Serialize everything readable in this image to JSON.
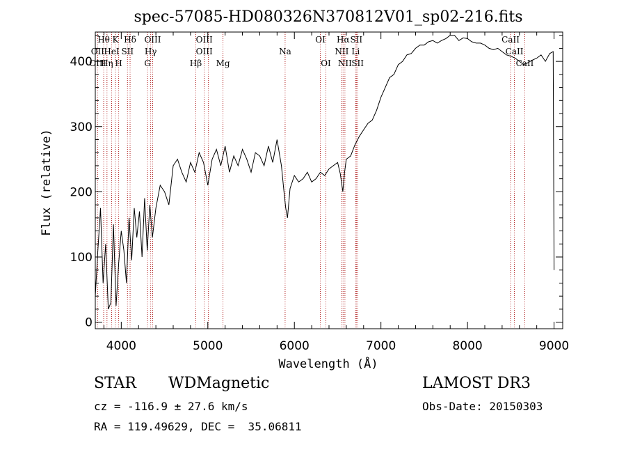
{
  "chart_data": {
    "type": "line",
    "title": "spec-57085-HD080326N370812V01_sp02-216.fits",
    "xlabel": "Wavelength (Å)",
    "ylabel": "Flux (relative)",
    "xlim": [
      3700,
      9100
    ],
    "ylim": [
      -10,
      445
    ],
    "xticks": [
      4000,
      5000,
      6000,
      7000,
      8000,
      9000
    ],
    "yticks": [
      0,
      100,
      200,
      300,
      400
    ],
    "grid": false,
    "series": [
      {
        "x": [
          3700,
          3730,
          3760,
          3790,
          3820,
          3850,
          3880,
          3910,
          3940,
          3970,
          4000,
          4030,
          4060,
          4090,
          4120,
          4150,
          4180,
          4210,
          4240,
          4270,
          4300,
          4330,
          4360,
          4400,
          4450,
          4500,
          4550,
          4600,
          4650,
          4700,
          4750,
          4800,
          4850,
          4900,
          4950,
          5000,
          5050,
          5100,
          5150,
          5200,
          5250,
          5300,
          5350,
          5400,
          5450,
          5500,
          5550,
          5600,
          5650,
          5700,
          5750,
          5800,
          5850,
          5880,
          5900,
          5920,
          5950,
          6000,
          6050,
          6100,
          6150,
          6200,
          6250,
          6300,
          6350,
          6400,
          6450,
          6500,
          6530,
          6560,
          6580,
          6600,
          6650,
          6700,
          6750,
          6800,
          6850,
          6900,
          6950,
          7000,
          7050,
          7100,
          7150,
          7200,
          7250,
          7300,
          7350,
          7400,
          7450,
          7500,
          7550,
          7600,
          7650,
          7700,
          7750,
          7800,
          7850,
          7900,
          7950,
          8000,
          8050,
          8100,
          8150,
          8200,
          8250,
          8300,
          8350,
          8400,
          8450,
          8500,
          8550,
          8600,
          8650,
          8700,
          8750,
          8800,
          8850,
          8900,
          8950,
          8990,
          9000
        ],
        "y": [
          40,
          110,
          175,
          60,
          120,
          20,
          30,
          150,
          25,
          90,
          140,
          110,
          60,
          160,
          95,
          175,
          130,
          170,
          100,
          190,
          110,
          180,
          130,
          175,
          210,
          200,
          180,
          240,
          250,
          230,
          215,
          245,
          230,
          260,
          245,
          210,
          250,
          265,
          240,
          270,
          230,
          255,
          240,
          265,
          250,
          230,
          260,
          255,
          240,
          270,
          245,
          280,
          240,
          200,
          175,
          160,
          205,
          225,
          215,
          220,
          230,
          215,
          220,
          230,
          225,
          235,
          240,
          245,
          228,
          200,
          230,
          250,
          255,
          272,
          285,
          295,
          305,
          310,
          325,
          345,
          360,
          375,
          380,
          395,
          400,
          410,
          412,
          420,
          425,
          425,
          430,
          432,
          428,
          432,
          435,
          440,
          440,
          432,
          436,
          435,
          430,
          428,
          428,
          425,
          420,
          418,
          420,
          415,
          410,
          408,
          405,
          400,
          395,
          398,
          402,
          405,
          410,
          400,
          412,
          415,
          80
        ]
      }
    ],
    "line_labels": [
      {
        "text": "Hθ",
        "x": 3797,
        "row": 1
      },
      {
        "text": "K",
        "x": 3933,
        "row": 1
      },
      {
        "text": "Hδ",
        "x": 4102,
        "row": 1
      },
      {
        "text": "OIII",
        "x": 4363,
        "row": 1
      },
      {
        "text": "OIII",
        "x": 4959,
        "row": 1
      },
      {
        "text": "OI",
        "x": 6300,
        "row": 1
      },
      {
        "text": "Hα",
        "x": 6563,
        "row": 1
      },
      {
        "text": "SII",
        "x": 6716,
        "row": 1
      },
      {
        "text": "CaII",
        "x": 8498,
        "row": 1
      },
      {
        "text": "OII",
        "x": 3727,
        "row": 2
      },
      {
        "text": "HeI",
        "x": 3889,
        "row": 2
      },
      {
        "text": "SII",
        "x": 4072,
        "row": 2
      },
      {
        "text": "Hγ",
        "x": 4340,
        "row": 2
      },
      {
        "text": "OIII",
        "x": 4959,
        "row": 2
      },
      {
        "text": "Na",
        "x": 5893,
        "row": 2
      },
      {
        "text": "NII",
        "x": 6548,
        "row": 2
      },
      {
        "text": "Li",
        "x": 6708,
        "row": 2
      },
      {
        "text": "CaII",
        "x": 8542,
        "row": 2
      },
      {
        "text": "OIII",
        "x": 3727,
        "row": 3
      },
      {
        "text": "Hη",
        "x": 3835,
        "row": 3
      },
      {
        "text": "H",
        "x": 3970,
        "row": 3
      },
      {
        "text": "G",
        "x": 4304,
        "row": 3
      },
      {
        "text": "Hβ",
        "x": 4861,
        "row": 3
      },
      {
        "text": "Mg",
        "x": 5175,
        "row": 3
      },
      {
        "text": "OI",
        "x": 6364,
        "row": 3
      },
      {
        "text": "NII",
        "x": 6584,
        "row": 3
      },
      {
        "text": "SII",
        "x": 6731,
        "row": 3
      },
      {
        "text": "CaII",
        "x": 8662,
        "row": 3
      }
    ],
    "line_positions": [
      3727,
      3797,
      3835,
      3889,
      3933,
      3970,
      4072,
      4102,
      4304,
      4340,
      4363,
      4861,
      4959,
      5007,
      5175,
      5893,
      6300,
      6364,
      6548,
      6563,
      6584,
      6708,
      6716,
      6731,
      8498,
      8542,
      8662
    ]
  },
  "info": {
    "object_class": "STAR",
    "subclass": "WDMagnetic",
    "survey": "LAMOST DR3",
    "cz": "cz = -116.9 ± 27.6 km/s",
    "obs_date": "Obs-Date: 20150303",
    "coords": "RA = 119.49629, DEC =  35.06811"
  }
}
